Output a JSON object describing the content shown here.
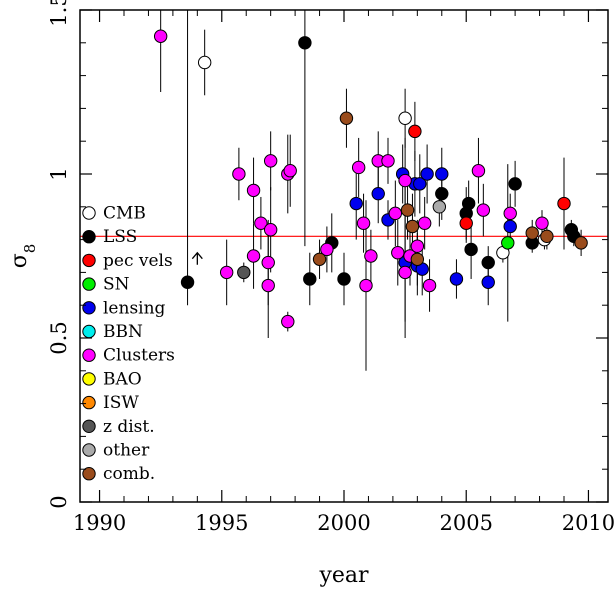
{
  "chart_data": {
    "type": "scatter",
    "title": "",
    "xlabel": "year",
    "ylabel": "σ8",
    "xlim": [
      1989.2,
      2010.8
    ],
    "ylim": [
      0,
      1.5
    ],
    "xticks": [
      1990,
      1995,
      2000,
      2005,
      2010
    ],
    "xtick_labels": [
      "1990",
      "1995",
      "2000",
      "2005",
      "2010"
    ],
    "yticks": [
      0,
      0.5,
      1,
      1.5
    ],
    "ytick_labels": [
      "0",
      "0.5",
      "1",
      "1.5"
    ],
    "grid": false,
    "legend_position": "left",
    "reference_line": {
      "y": 0.81,
      "color": "#ff0000"
    },
    "lower_limit_arrow": {
      "x": 1994.0,
      "y": 0.76
    },
    "series": [
      {
        "name": "CMB",
        "color": "#ffffff",
        "points": [
          {
            "x": 1994.3,
            "y": 1.34,
            "lo": 1.24,
            "hi": 1.44
          },
          {
            "x": 2002.5,
            "y": 1.17,
            "lo": 1.08,
            "hi": 1.26
          },
          {
            "x": 2006.5,
            "y": 0.76,
            "lo": 0.73,
            "hi": 0.79
          },
          {
            "x": 2008.2,
            "y": 0.8,
            "lo": 0.77,
            "hi": 0.83
          }
        ]
      },
      {
        "name": "LSS",
        "color": "#000000",
        "points": [
          {
            "x": 1993.6,
            "y": 0.67,
            "lo": 0.6,
            "hi": 1.5
          },
          {
            "x": 1998.4,
            "y": 1.4,
            "lo": 0.78,
            "hi": 1.5
          },
          {
            "x": 1998.6,
            "y": 0.68,
            "lo": 0.6,
            "hi": 0.76
          },
          {
            "x": 1999.5,
            "y": 0.79,
            "lo": 0.7,
            "hi": 0.88
          },
          {
            "x": 2000.0,
            "y": 0.68,
            "lo": 0.6,
            "hi": 0.76
          },
          {
            "x": 2004.0,
            "y": 0.94,
            "lo": 0.86,
            "hi": 1.02
          },
          {
            "x": 2005.0,
            "y": 0.88,
            "lo": 0.8,
            "hi": 0.96
          },
          {
            "x": 2005.1,
            "y": 0.91,
            "lo": 0.84,
            "hi": 0.98
          },
          {
            "x": 2005.2,
            "y": 0.77,
            "lo": 0.68,
            "hi": 0.86
          },
          {
            "x": 2005.9,
            "y": 0.73,
            "lo": 0.68,
            "hi": 0.78
          },
          {
            "x": 2007.0,
            "y": 0.97,
            "lo": 0.9,
            "hi": 1.04
          },
          {
            "x": 2007.7,
            "y": 0.79,
            "lo": 0.76,
            "hi": 0.82
          },
          {
            "x": 2009.3,
            "y": 0.83,
            "lo": 0.8,
            "hi": 0.86
          },
          {
            "x": 2009.4,
            "y": 0.81,
            "lo": 0.78,
            "hi": 0.84
          }
        ]
      },
      {
        "name": "pec vels",
        "color": "#ff0000",
        "points": [
          {
            "x": 2002.9,
            "y": 1.13,
            "lo": 1.04,
            "hi": 1.22
          },
          {
            "x": 2005.0,
            "y": 0.85,
            "lo": 0.79,
            "hi": 0.91
          },
          {
            "x": 2009.0,
            "y": 0.91,
            "lo": 0.77,
            "hi": 1.05
          }
        ]
      },
      {
        "name": "SN",
        "color": "#00ee00",
        "points": [
          {
            "x": 2006.7,
            "y": 0.79,
            "lo": 0.55,
            "hi": 1.03
          }
        ]
      },
      {
        "name": "lensing",
        "color": "#0000ee",
        "points": [
          {
            "x": 2000.5,
            "y": 0.91,
            "lo": 0.8,
            "hi": 1.02
          },
          {
            "x": 2001.4,
            "y": 0.94,
            "lo": 0.85,
            "hi": 1.03
          },
          {
            "x": 2001.8,
            "y": 0.86,
            "lo": 0.8,
            "hi": 0.92
          },
          {
            "x": 2002.4,
            "y": 1.0,
            "lo": 0.91,
            "hi": 1.09
          },
          {
            "x": 2002.5,
            "y": 0.73,
            "lo": 0.5,
            "hi": 0.96
          },
          {
            "x": 2002.9,
            "y": 0.97,
            "lo": 0.87,
            "hi": 1.07
          },
          {
            "x": 2003.1,
            "y": 0.97,
            "lo": 0.88,
            "hi": 1.06
          },
          {
            "x": 2003.0,
            "y": 0.72,
            "lo": 0.63,
            "hi": 0.81
          },
          {
            "x": 2003.2,
            "y": 0.71,
            "lo": 0.63,
            "hi": 0.79
          },
          {
            "x": 2003.4,
            "y": 1.0,
            "lo": 0.91,
            "hi": 1.09
          },
          {
            "x": 2004.0,
            "y": 1.0,
            "lo": 0.92,
            "hi": 1.08
          },
          {
            "x": 2004.6,
            "y": 0.68,
            "lo": 0.62,
            "hi": 0.74
          },
          {
            "x": 2005.9,
            "y": 0.67,
            "lo": 0.6,
            "hi": 0.74
          },
          {
            "x": 2006.8,
            "y": 0.84,
            "lo": 0.78,
            "hi": 0.9
          }
        ]
      },
      {
        "name": "BBN",
        "color": "#00eeee",
        "points": []
      },
      {
        "name": "Clusters",
        "color": "#ff00ff",
        "points": [
          {
            "x": 1992.5,
            "y": 1.42,
            "lo": 1.25,
            "hi": 1.5
          },
          {
            "x": 1995.2,
            "y": 0.7,
            "lo": 0.6,
            "hi": 0.8
          },
          {
            "x": 1995.7,
            "y": 1.0,
            "lo": 0.92,
            "hi": 1.08
          },
          {
            "x": 1996.3,
            "y": 0.95,
            "lo": 0.85,
            "hi": 1.05
          },
          {
            "x": 1996.3,
            "y": 0.75,
            "lo": 0.65,
            "hi": 0.85
          },
          {
            "x": 1996.6,
            "y": 0.85,
            "lo": 0.77,
            "hi": 0.93
          },
          {
            "x": 1996.9,
            "y": 0.73,
            "lo": 0.6,
            "hi": 0.86
          },
          {
            "x": 1996.9,
            "y": 0.66,
            "lo": 0.5,
            "hi": 0.82
          },
          {
            "x": 1997.0,
            "y": 1.04,
            "lo": 0.95,
            "hi": 1.13
          },
          {
            "x": 1997.0,
            "y": 0.83,
            "lo": 0.7,
            "hi": 0.96
          },
          {
            "x": 1997.7,
            "y": 1.0,
            "lo": 0.88,
            "hi": 1.12
          },
          {
            "x": 1997.8,
            "y": 1.01,
            "lo": 0.9,
            "hi": 1.12
          },
          {
            "x": 1997.7,
            "y": 0.55,
            "lo": 0.52,
            "hi": 0.58
          },
          {
            "x": 1999.3,
            "y": 0.77,
            "lo": 0.7,
            "hi": 0.84
          },
          {
            "x": 2000.6,
            "y": 1.02,
            "lo": 0.93,
            "hi": 1.11
          },
          {
            "x": 2000.8,
            "y": 0.85,
            "lo": 0.76,
            "hi": 0.94
          },
          {
            "x": 2000.9,
            "y": 0.66,
            "lo": 0.4,
            "hi": 0.92
          },
          {
            "x": 2001.1,
            "y": 0.75,
            "lo": 0.67,
            "hi": 0.83
          },
          {
            "x": 2001.4,
            "y": 1.04,
            "lo": 0.95,
            "hi": 1.13
          },
          {
            "x": 2001.8,
            "y": 1.04,
            "lo": 0.97,
            "hi": 1.11
          },
          {
            "x": 2002.1,
            "y": 0.88,
            "lo": 0.78,
            "hi": 0.98
          },
          {
            "x": 2002.2,
            "y": 0.76,
            "lo": 0.66,
            "hi": 0.86
          },
          {
            "x": 2002.5,
            "y": 0.98,
            "lo": 0.85,
            "hi": 1.11
          },
          {
            "x": 2002.5,
            "y": 0.7,
            "lo": 0.55,
            "hi": 0.85
          },
          {
            "x": 2002.7,
            "y": 0.75,
            "lo": 0.66,
            "hi": 0.84
          },
          {
            "x": 2003.0,
            "y": 0.78,
            "lo": 0.7,
            "hi": 0.86
          },
          {
            "x": 2003.3,
            "y": 0.85,
            "lo": 0.77,
            "hi": 0.93
          },
          {
            "x": 2003.5,
            "y": 0.66,
            "lo": 0.58,
            "hi": 0.74
          },
          {
            "x": 2005.5,
            "y": 1.01,
            "lo": 0.91,
            "hi": 1.11
          },
          {
            "x": 2005.7,
            "y": 0.89,
            "lo": 0.81,
            "hi": 0.97
          },
          {
            "x": 2006.8,
            "y": 0.88,
            "lo": 0.82,
            "hi": 0.94
          },
          {
            "x": 2008.1,
            "y": 0.85,
            "lo": 0.81,
            "hi": 0.89
          }
        ]
      },
      {
        "name": "BAO",
        "color": "#ffff00",
        "points": []
      },
      {
        "name": "ISW",
        "color": "#ff8800",
        "points": []
      },
      {
        "name": "z dist.",
        "color": "#555555",
        "points": [
          {
            "x": 1995.9,
            "y": 0.7,
            "lo": 0.67,
            "hi": 0.73
          }
        ]
      },
      {
        "name": "other",
        "color": "#aaaaaa",
        "points": [
          {
            "x": 2003.9,
            "y": 0.9,
            "lo": 0.84,
            "hi": 0.96
          }
        ]
      },
      {
        "name": "comb.",
        "color": "#9a4c1c",
        "points": [
          {
            "x": 1999.0,
            "y": 0.74,
            "lo": 0.68,
            "hi": 0.8
          },
          {
            "x": 2000.1,
            "y": 1.17,
            "lo": 1.08,
            "hi": 1.26
          },
          {
            "x": 2002.6,
            "y": 0.89,
            "lo": 0.8,
            "hi": 0.98
          },
          {
            "x": 2002.8,
            "y": 0.84,
            "lo": 0.74,
            "hi": 0.94
          },
          {
            "x": 2003.0,
            "y": 0.74,
            "lo": 0.66,
            "hi": 0.82
          },
          {
            "x": 2007.7,
            "y": 0.82,
            "lo": 0.78,
            "hi": 0.86
          },
          {
            "x": 2008.3,
            "y": 0.81,
            "lo": 0.77,
            "hi": 0.85
          },
          {
            "x": 2009.7,
            "y": 0.79,
            "lo": 0.75,
            "hi": 0.83
          }
        ]
      }
    ]
  }
}
